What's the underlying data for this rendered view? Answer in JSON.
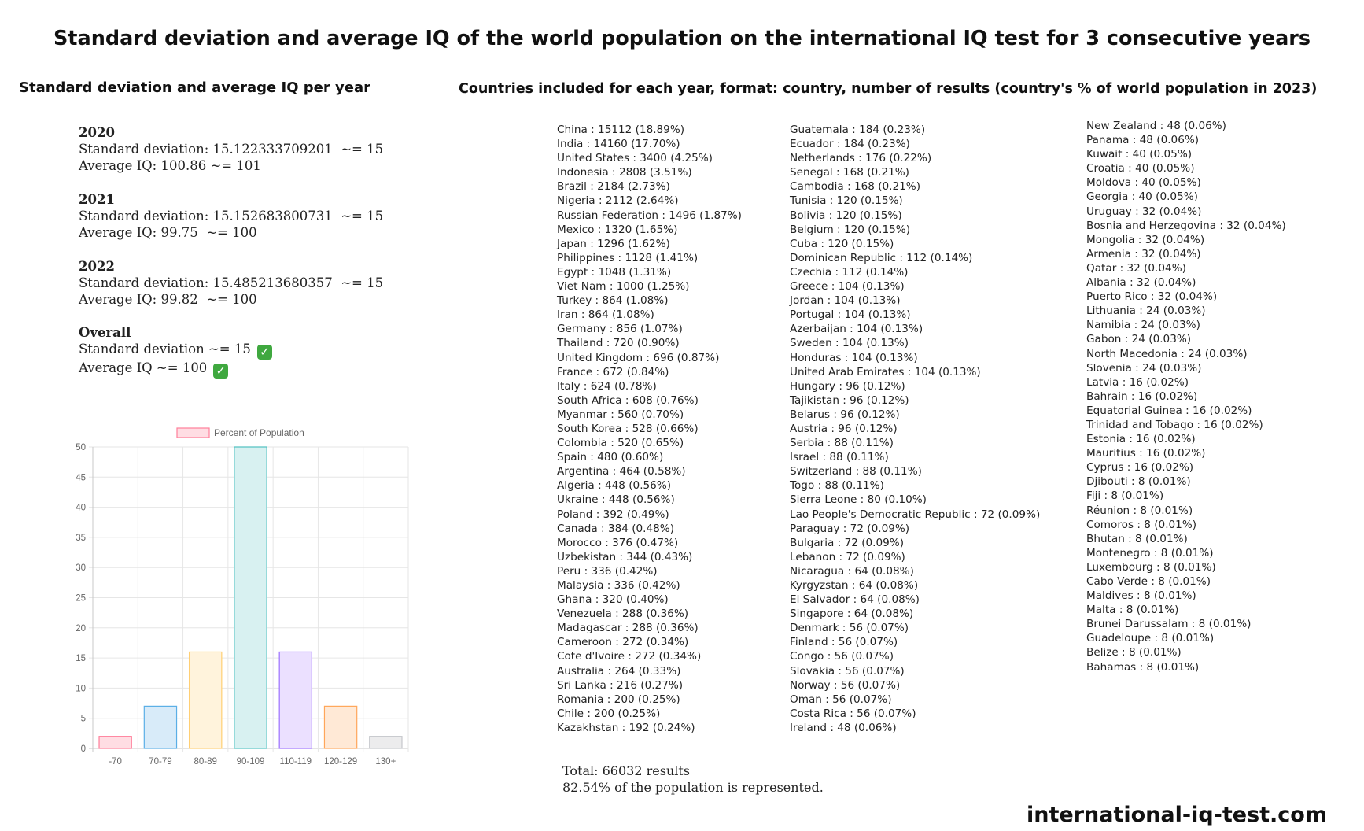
{
  "title": "Standard deviation and average IQ of the world population on the international IQ test for 3 consecutive years",
  "left_heading": "Standard deviation and average IQ per year",
  "right_heading": "Countries included for each year, format: country, number of results (country's % of world population in 2023)",
  "years": [
    {
      "year": "2020",
      "std": "Standard deviation: 15.122333709201  ~= 15",
      "avg": "Average IQ: 100.86 ~= 101"
    },
    {
      "year": "2021",
      "std": "Standard deviation: 15.152683800731  ~= 15",
      "avg": "Average IQ: 99.75  ~= 100"
    },
    {
      "year": "2022",
      "std": "Standard deviation: 15.485213680357  ~= 15",
      "avg": "Average IQ: 99.82  ~= 100"
    }
  ],
  "overall": {
    "label": "Overall",
    "std": "Standard deviation ~= 15",
    "avg": "Average IQ ~= 100",
    "check_icon": "check-mark-icon",
    "check_color": "#3fa83f"
  },
  "chart_data": {
    "type": "bar",
    "categories": [
      "-70",
      "70-79",
      "80-89",
      "90-109",
      "110-119",
      "120-129",
      "130+"
    ],
    "series": [
      {
        "name": "Percent of Population",
        "values": [
          2,
          7,
          16,
          50,
          16,
          7,
          2
        ]
      }
    ],
    "fills": [
      "#ffdde3",
      "#d8ebf9",
      "#fff3dc",
      "#d8f1f1",
      "#ebe0ff",
      "#ffe9d6",
      "#ececed"
    ],
    "strokes": [
      "#ff7f9a",
      "#5aaee6",
      "#ffcf73",
      "#4fc0c0",
      "#9c70ff",
      "#ffa65a",
      "#c5c7cb"
    ],
    "legend_fill": "#ffdde3",
    "legend_stroke": "#ff7f9a",
    "yticks": [
      "0",
      "5",
      "10",
      "15",
      "20",
      "25",
      "30",
      "35",
      "40",
      "45",
      "50"
    ],
    "ylim": [
      0,
      50
    ],
    "grid": true,
    "legend_position": "top"
  },
  "countries": [
    [
      "China : 15112 (18.89%)",
      "India : 14160 (17.70%)",
      "United States : 3400 (4.25%)",
      "Indonesia : 2808 (3.51%)",
      "Brazil : 2184 (2.73%)",
      "Nigeria : 2112 (2.64%)",
      "Russian Federation : 1496 (1.87%)",
      "Mexico : 1320 (1.65%)",
      "Japan : 1296 (1.62%)",
      "Philippines : 1128 (1.41%)",
      "Egypt : 1048 (1.31%)",
      "Viet Nam : 1000 (1.25%)",
      "Turkey : 864 (1.08%)",
      "Iran : 864 (1.08%)",
      "Germany : 856 (1.07%)",
      "Thailand : 720 (0.90%)",
      "United Kingdom : 696 (0.87%)",
      "France : 672 (0.84%)",
      "Italy : 624 (0.78%)",
      "South Africa : 608 (0.76%)",
      "Myanmar : 560 (0.70%)",
      "South Korea : 528 (0.66%)",
      "Colombia : 520 (0.65%)",
      "Spain : 480 (0.60%)",
      "Argentina : 464 (0.58%)",
      "Algeria : 448 (0.56%)",
      "Ukraine : 448 (0.56%)",
      "Poland : 392 (0.49%)",
      "Canada : 384 (0.48%)",
      "Morocco : 376 (0.47%)",
      "Uzbekistan : 344 (0.43%)",
      "Peru : 336 (0.42%)",
      "Malaysia : 336 (0.42%)",
      "Ghana : 320 (0.40%)",
      "Venezuela : 288 (0.36%)",
      "Madagascar : 288 (0.36%)",
      "Cameroon : 272 (0.34%)",
      "Cote d'Ivoire : 272 (0.34%)",
      "Australia : 264 (0.33%)",
      "Sri Lanka : 216 (0.27%)",
      "Romania : 200 (0.25%)",
      "Chile : 200 (0.25%)",
      "Kazakhstan : 192 (0.24%)"
    ],
    [
      "Guatemala : 184 (0.23%)",
      "Ecuador : 184 (0.23%)",
      "Netherlands : 176 (0.22%)",
      "Senegal : 168 (0.21%)",
      "Cambodia : 168 (0.21%)",
      "Tunisia : 120 (0.15%)",
      "Bolivia : 120 (0.15%)",
      "Belgium : 120 (0.15%)",
      "Cuba : 120 (0.15%)",
      "Dominican Republic : 112 (0.14%)",
      "Czechia : 112 (0.14%)",
      "Greece : 104 (0.13%)",
      "Jordan : 104 (0.13%)",
      "Portugal : 104 (0.13%)",
      "Azerbaijan : 104 (0.13%)",
      "Sweden : 104 (0.13%)",
      "Honduras : 104 (0.13%)",
      "United Arab Emirates : 104 (0.13%)",
      "Hungary : 96 (0.12%)",
      "Tajikistan : 96 (0.12%)",
      "Belarus : 96 (0.12%)",
      "Austria : 96 (0.12%)",
      "Serbia : 88 (0.11%)",
      "Israel : 88 (0.11%)",
      "Switzerland : 88 (0.11%)",
      "Togo : 88 (0.11%)",
      "Sierra Leone : 80 (0.10%)",
      "Lao People's Democratic Republic : 72 (0.09%)",
      "Paraguay : 72 (0.09%)",
      "Bulgaria : 72 (0.09%)",
      "Lebanon : 72 (0.09%)",
      "Nicaragua : 64 (0.08%)",
      "Kyrgyzstan : 64 (0.08%)",
      "El Salvador : 64 (0.08%)",
      "Singapore : 64 (0.08%)",
      "Denmark : 56 (0.07%)",
      "Finland : 56 (0.07%)",
      "Congo : 56 (0.07%)",
      "Slovakia : 56 (0.07%)",
      "Norway : 56 (0.07%)",
      "Oman : 56 (0.07%)",
      "Costa Rica : 56 (0.07%)",
      "Ireland : 48 (0.06%)"
    ],
    [
      "New Zealand : 48 (0.06%)",
      "Panama : 48 (0.06%)",
      "Kuwait : 40 (0.05%)",
      "Croatia : 40 (0.05%)",
      "Moldova : 40 (0.05%)",
      "Georgia : 40 (0.05%)",
      "Uruguay : 32 (0.04%)",
      "Bosnia and Herzegovina : 32 (0.04%)",
      "Mongolia : 32 (0.04%)",
      "Armenia : 32 (0.04%)",
      "Qatar : 32 (0.04%)",
      "Albania : 32 (0.04%)",
      "Puerto Rico : 32 (0.04%)",
      "Lithuania : 24 (0.03%)",
      "Namibia : 24 (0.03%)",
      "Gabon : 24 (0.03%)",
      "North Macedonia : 24 (0.03%)",
      "Slovenia : 24 (0.03%)",
      "Latvia : 16 (0.02%)",
      "Bahrain : 16 (0.02%)",
      "Equatorial Guinea : 16 (0.02%)",
      "Trinidad and Tobago : 16 (0.02%)",
      "Estonia : 16 (0.02%)",
      "Mauritius : 16 (0.02%)",
      "Cyprus : 16 (0.02%)",
      "Djibouti : 8 (0.01%)",
      "Fiji : 8 (0.01%)",
      "Réunion : 8 (0.01%)",
      "Comoros : 8 (0.01%)",
      "Bhutan : 8 (0.01%)",
      "Montenegro : 8 (0.01%)",
      "Luxembourg : 8 (0.01%)",
      "Cabo Verde : 8 (0.01%)",
      "Maldives : 8 (0.01%)",
      "Malta : 8 (0.01%)",
      "Brunei Darussalam : 8 (0.01%)",
      "Guadeloupe : 8 (0.01%)",
      "Belize : 8 (0.01%)",
      "Bahamas : 8 (0.01%)"
    ]
  ],
  "totals": {
    "results": "Total: 66032 results",
    "represented": "82.54% of the population is represented."
  },
  "site": "international-iq-test.com"
}
